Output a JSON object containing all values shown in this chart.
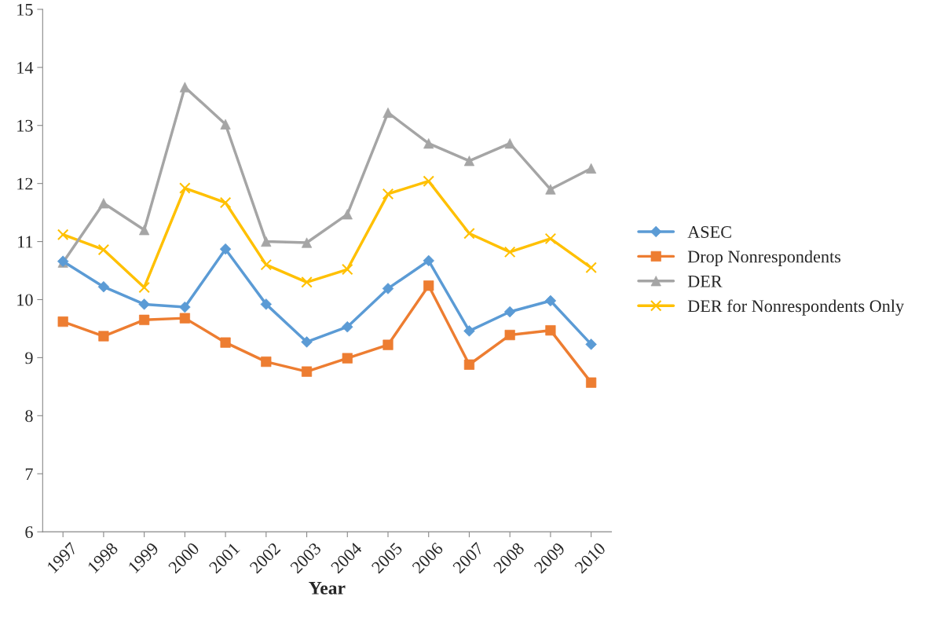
{
  "chart_data": {
    "type": "line",
    "xlabel": "Year",
    "categories": [
      "1997",
      "1998",
      "1999",
      "2000",
      "2001",
      "2002",
      "2003",
      "2004",
      "2005",
      "2006",
      "2007",
      "2008",
      "2009",
      "2010"
    ],
    "series": [
      {
        "name": "ASEC",
        "color": "#5b9bd5",
        "marker": "diamond",
        "values": [
          10.66,
          10.22,
          9.92,
          9.87,
          10.87,
          9.92,
          9.27,
          9.53,
          10.19,
          10.67,
          9.46,
          9.79,
          9.98,
          9.23
        ]
      },
      {
        "name": "Drop Nonrespondents",
        "color": "#ed7d31",
        "marker": "square",
        "values": [
          9.62,
          9.37,
          9.65,
          9.68,
          9.26,
          8.93,
          8.76,
          8.99,
          9.22,
          10.24,
          8.88,
          9.39,
          9.47,
          8.57
        ]
      },
      {
        "name": "DER",
        "color": "#a5a5a5",
        "marker": "triangle",
        "values": [
          10.64,
          11.66,
          11.2,
          13.66,
          13.02,
          11.0,
          10.98,
          11.47,
          13.22,
          12.69,
          12.39,
          12.69,
          11.9,
          12.26
        ]
      },
      {
        "name": "DER for Nonrespondents Only",
        "color": "#ffc000",
        "marker": "cross",
        "values": [
          11.12,
          10.86,
          10.21,
          11.92,
          11.67,
          10.6,
          10.3,
          10.52,
          11.82,
          12.04,
          11.14,
          10.82,
          11.05,
          10.55
        ]
      }
    ],
    "ylim": [
      6,
      15
    ],
    "yticks": [
      6,
      7,
      8,
      9,
      10,
      11,
      12,
      13,
      14,
      15
    ],
    "grid": false,
    "legend": "right",
    "line_style": "solid"
  }
}
